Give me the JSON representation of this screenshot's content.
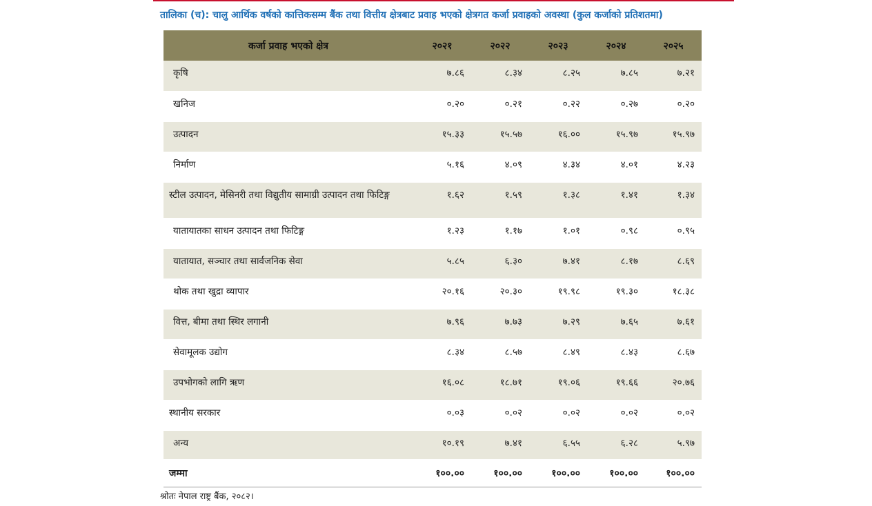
{
  "caption": "तालिका (च): चालु आर्थिक वर्षको कात्तिकसम्म बैंक तथा वित्तीय क्षेत्रबाट प्रवाह भएको क्षेत्रगत कर्जा प्रवाहको अवस्था (कुल कर्जाको प्रतिशतमा)",
  "table": {
    "header": [
      "कर्जा प्रवाह भएको क्षेत्र",
      "२०२१",
      "२०२२",
      "२०२३",
      "२०२४",
      "२०२५"
    ],
    "rows": [
      {
        "label": "कृषि",
        "values": [
          "७.८६",
          "८.३४",
          "८.२५",
          "७.८५",
          "७.२१"
        ]
      },
      {
        "label": "खनिज",
        "values": [
          "०.२०",
          "०.२१",
          "०.२२",
          "०.२७",
          "०.२०"
        ]
      },
      {
        "label": "उत्पादन",
        "values": [
          "१५.३३",
          "१५.५७",
          "१६.००",
          "१५.९७",
          "१५.९७"
        ]
      },
      {
        "label": "निर्माण",
        "values": [
          "५.१६",
          "४.०९",
          "४.३४",
          "४.०१",
          "४.२३"
        ]
      },
      {
        "label": "स्टील उत्पादन, मेसिनरी तथा विद्युतीय सामाग्री उत्पादन तथा फिटिङ्ग",
        "values": [
          "१.६२",
          "१.५९",
          "१.३८",
          "१.४१",
          "१.३४"
        ]
      },
      {
        "label": "यातायातका साधन उत्पादन तथा फिटिङ्ग",
        "values": [
          "१.२३",
          "१.१७",
          "१.०१",
          "०.९८",
          "०.९५"
        ]
      },
      {
        "label": "यातायात, सञ्चार तथा सार्वजनिक सेवा",
        "values": [
          "५.८५",
          "६.३०",
          "७.४१",
          "८.१७",
          "८.६९"
        ]
      },
      {
        "label": "थोक तथा खुद्रा व्यापार",
        "values": [
          "२०.१६",
          "२०.३०",
          "१९.९८",
          "१९.३०",
          "१८.३८"
        ]
      },
      {
        "label": "वित्त, बीमा तथा स्थिर लगानी",
        "values": [
          "७.९६",
          "७.७३",
          "७.२९",
          "७.६५",
          "७.६१"
        ]
      },
      {
        "label": "सेवामूलक उद्योग",
        "values": [
          "८.३४",
          "८.५७",
          "८.४९",
          "८.४३",
          "८.६७"
        ]
      },
      {
        "label": "उपभोगको लागि ऋण",
        "values": [
          "१६.०८",
          "१८.७१",
          "१९.०६",
          "१९.६६",
          "२०.७६"
        ]
      },
      {
        "label": "स्थानीय सरकार",
        "values": [
          "०.०३",
          "०.०२",
          "०.०२",
          "०.०२",
          "०.०२"
        ]
      },
      {
        "label": "अन्य",
        "values": [
          "१०.१९",
          "७.४१",
          "६.५५",
          "६.२८",
          "५.९७"
        ]
      }
    ],
    "total": {
      "label": "जम्मा",
      "values": [
        "१००.००",
        "१००.००",
        "१००.००",
        "१००.००",
        "१००.००"
      ]
    }
  },
  "source": "श्रोतः नेपाल राष्ट्र बैंक, २०८२।",
  "colors": {
    "header_bg": "#8a845d",
    "shade_row": "#e8e7db",
    "caption": "#1f6fb5",
    "top_rule": "#c8102e"
  }
}
